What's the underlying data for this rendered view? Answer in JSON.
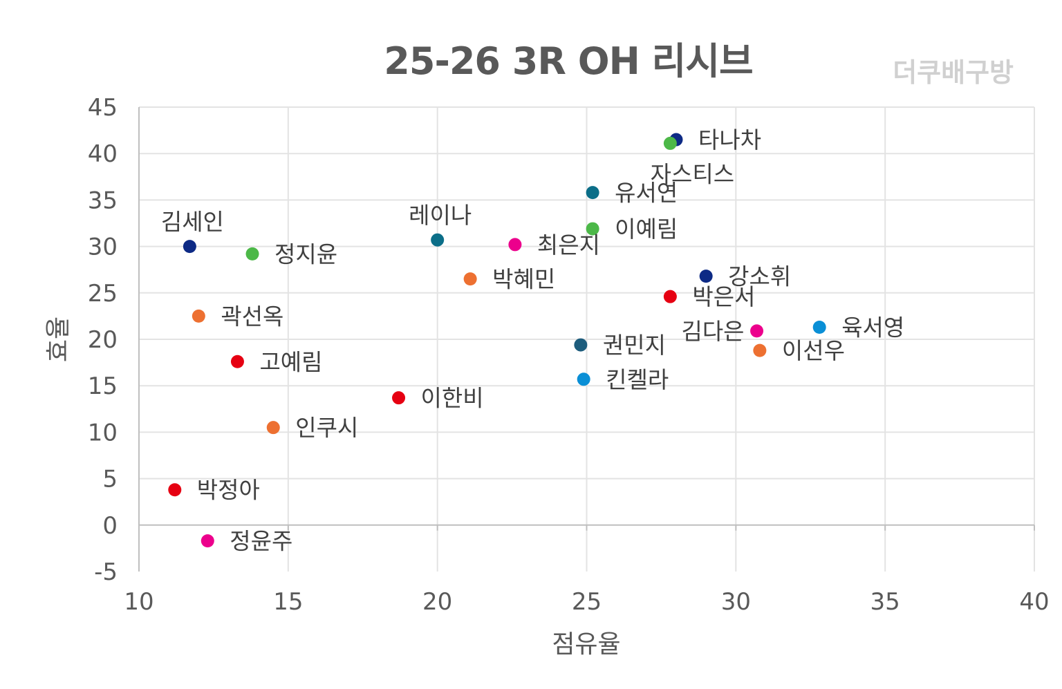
{
  "chart_data": {
    "type": "scatter",
    "title": "25-26 3R OH 리시브",
    "watermark": "더쿠배구방",
    "xlabel": "점유율",
    "ylabel": "효율",
    "xlim": [
      10,
      40
    ],
    "ylim": [
      -5,
      45
    ],
    "xticks": [
      10,
      15,
      20,
      25,
      30,
      35,
      40
    ],
    "yticks": [
      -5,
      0,
      5,
      10,
      15,
      20,
      25,
      30,
      35,
      40,
      45
    ],
    "grid": true,
    "points": [
      {
        "label": "타나차",
        "x": 28.0,
        "y": 41.5,
        "color": "#0d2a85",
        "label_pos": "right"
      },
      {
        "label": "자스티스",
        "x": 27.8,
        "y": 41.1,
        "color": "#4cb848",
        "label_pos": "below"
      },
      {
        "label": "유서연",
        "x": 25.2,
        "y": 35.8,
        "color": "#0b6e88",
        "label_pos": "right"
      },
      {
        "label": "이예림",
        "x": 25.2,
        "y": 31.9,
        "color": "#4cb848",
        "label_pos": "right"
      },
      {
        "label": "김세인",
        "x": 11.7,
        "y": 30.0,
        "color": "#0d2a85",
        "label_pos": "above"
      },
      {
        "label": "정지윤",
        "x": 13.8,
        "y": 29.2,
        "color": "#4cb848",
        "label_pos": "right"
      },
      {
        "label": "레이나",
        "x": 20.0,
        "y": 30.7,
        "color": "#0b6e88",
        "label_pos": "above"
      },
      {
        "label": "최은지",
        "x": 22.6,
        "y": 30.2,
        "color": "#ec008c",
        "label_pos": "right"
      },
      {
        "label": "박혜민",
        "x": 21.1,
        "y": 26.5,
        "color": "#ed7031",
        "label_pos": "right"
      },
      {
        "label": "강소휘",
        "x": 29.0,
        "y": 26.8,
        "color": "#0d2a85",
        "label_pos": "right"
      },
      {
        "label": "박은서",
        "x": 27.8,
        "y": 24.6,
        "color": "#e60012",
        "label_pos": "right"
      },
      {
        "label": "곽선옥",
        "x": 12.0,
        "y": 22.5,
        "color": "#ed7031",
        "label_pos": "right"
      },
      {
        "label": "김다은",
        "x": 30.7,
        "y": 20.9,
        "color": "#ec008c",
        "label_pos": "left"
      },
      {
        "label": "육서영",
        "x": 32.8,
        "y": 21.3,
        "color": "#0a8fd6",
        "label_pos": "right"
      },
      {
        "label": "이선우",
        "x": 30.8,
        "y": 18.8,
        "color": "#ed7031",
        "label_pos": "right"
      },
      {
        "label": "권민지",
        "x": 24.8,
        "y": 19.4,
        "color": "#1d5c7c",
        "label_pos": "right"
      },
      {
        "label": "고예림",
        "x": 13.3,
        "y": 17.6,
        "color": "#e60012",
        "label_pos": "right"
      },
      {
        "label": "킨켈라",
        "x": 24.9,
        "y": 15.7,
        "color": "#0a8fd6",
        "label_pos": "right"
      },
      {
        "label": "이한비",
        "x": 18.7,
        "y": 13.7,
        "color": "#e60012",
        "label_pos": "right"
      },
      {
        "label": "인쿠시",
        "x": 14.5,
        "y": 10.5,
        "color": "#ed7031",
        "label_pos": "right"
      },
      {
        "label": "박정아",
        "x": 11.2,
        "y": 3.8,
        "color": "#e60012",
        "label_pos": "right"
      },
      {
        "label": "정윤주",
        "x": 12.3,
        "y": -1.7,
        "color": "#ec008c",
        "label_pos": "right"
      }
    ]
  }
}
